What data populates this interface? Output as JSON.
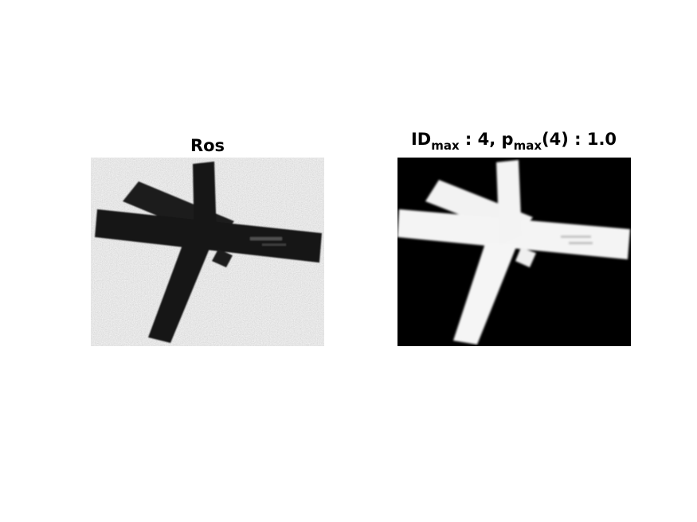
{
  "panels": [
    {
      "title": "Ros",
      "image_description_icon": "grayscale-photo-dark-cross-object"
    },
    {
      "title_parts": {
        "id": "ID",
        "id_sub": "max",
        "mid": " : 4, p",
        "p_sub": "max",
        "tail": "(4) : 1.0"
      },
      "image_description_icon": "binary-mask-white-cross-object"
    }
  ],
  "colors": {
    "background": "#ffffff",
    "text": "#000000",
    "mask_background": "#000000",
    "mask_foreground": "#f4f4f4"
  }
}
